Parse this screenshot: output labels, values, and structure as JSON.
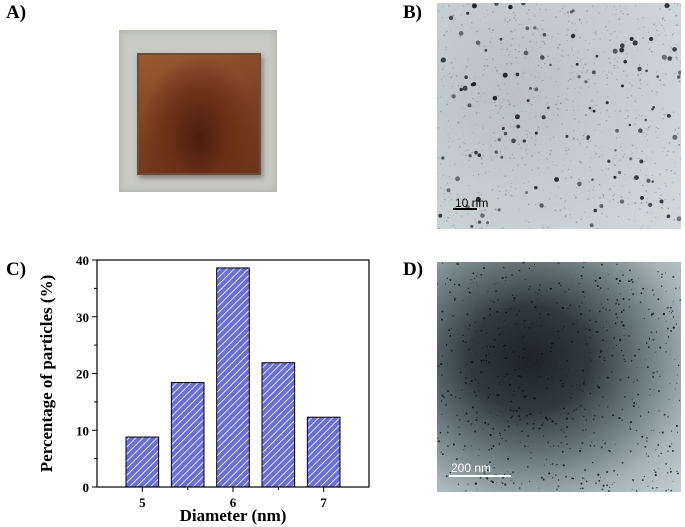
{
  "panels": {
    "a": {
      "label": "A)"
    },
    "b": {
      "label": "B)",
      "scale_bar": "10 nm"
    },
    "c": {
      "label": "C)"
    },
    "d": {
      "label": "D)",
      "scale_bar": "200 nm"
    }
  },
  "chart_data": {
    "type": "bar",
    "categories": [
      "5",
      "5.5",
      "6",
      "6.5",
      "7"
    ],
    "values": [
      8.8,
      18.4,
      38.6,
      21.9,
      12.3
    ],
    "tick_labels_x": [
      "5",
      "6",
      "7"
    ],
    "tick_labels_y": [
      "0",
      "10",
      "20",
      "30",
      "40"
    ],
    "xlabel": "Diameter (nm)",
    "ylabel": "Percentage of particles (%)",
    "xlim": [
      4.5,
      7.5
    ],
    "ylim": [
      0,
      40
    ],
    "bar_color": "#6a6fd8",
    "hatch_color": "#ffffff",
    "grid": false
  }
}
